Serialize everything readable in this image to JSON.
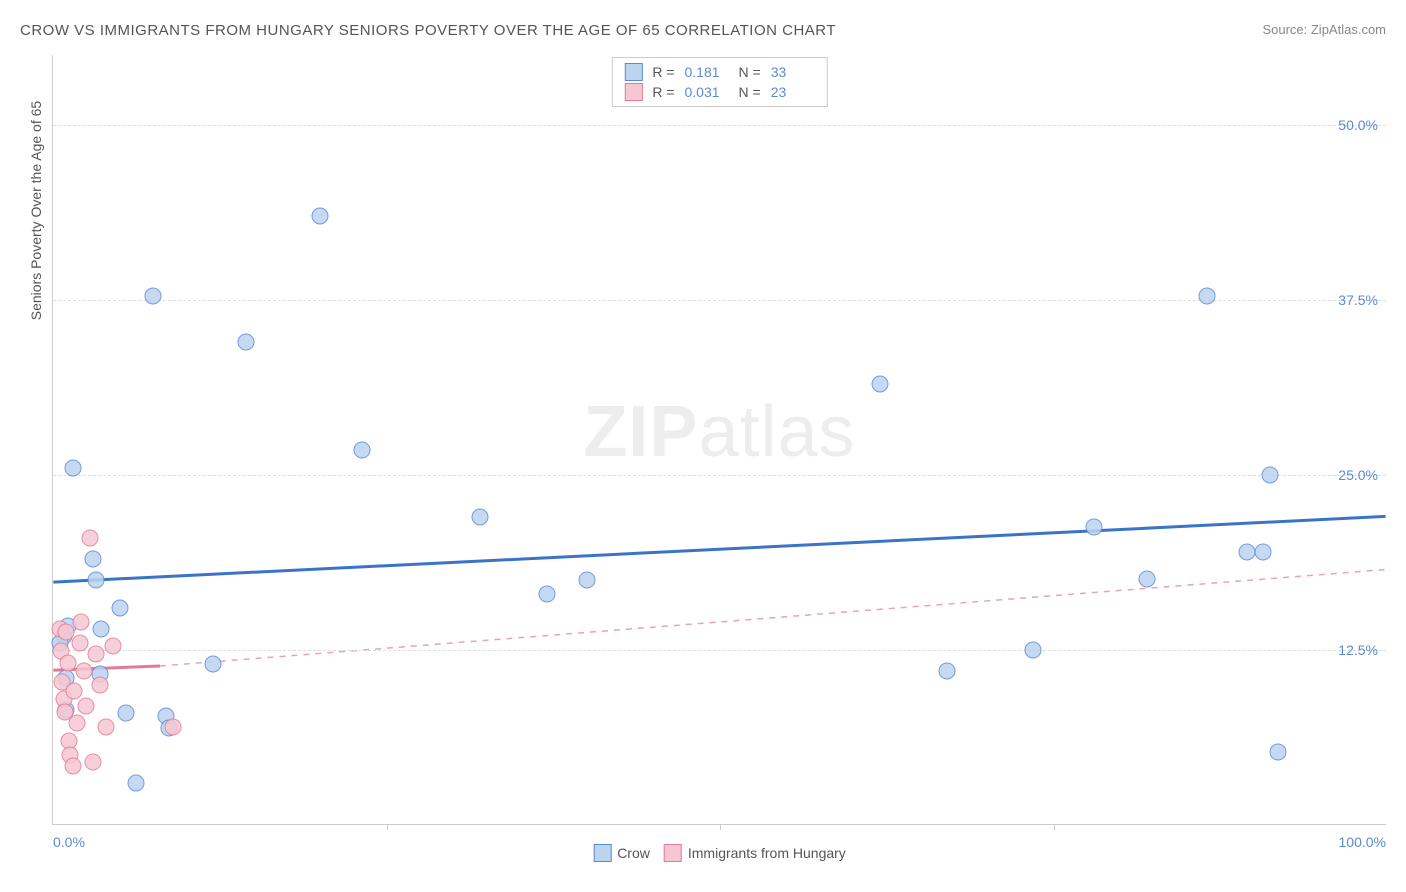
{
  "title": "CROW VS IMMIGRANTS FROM HUNGARY SENIORS POVERTY OVER THE AGE OF 65 CORRELATION CHART",
  "source": "Source: ZipAtlas.com",
  "watermark_html": "<b>ZIP</b>atlas",
  "ylabel": "Seniors Poverty Over the Age of 65",
  "chart": {
    "type": "scatter",
    "background_color": "#ffffff",
    "grid_color": "#dddddd",
    "axis_color": "#cccccc",
    "tick_label_color": "#5b8bd4",
    "axis_label_color": "#555555",
    "xlim": [
      0,
      100
    ],
    "ylim": [
      0,
      55
    ],
    "y_ticks": [
      {
        "v": 12.5,
        "label": "12.5%"
      },
      {
        "v": 25.0,
        "label": "25.0%"
      },
      {
        "v": 37.5,
        "label": "37.5%"
      },
      {
        "v": 50.0,
        "label": "50.0%"
      }
    ],
    "x_ticks_minor": [
      25,
      50,
      75
    ],
    "x_labels": [
      {
        "v": 0,
        "label": "0.0%",
        "align": "left"
      },
      {
        "v": 100,
        "label": "100.0%",
        "align": "right"
      }
    ],
    "marker_radius": 8.5,
    "series": [
      {
        "name": "Crow",
        "fill": "#bcd4f0",
        "stroke": "#5b8bd4",
        "R": "0.181",
        "N": "33",
        "trend": {
          "x1": 0,
          "y1": 17.3,
          "x2": 100,
          "y2": 22.0,
          "stroke": "#3b73c9",
          "width": 3,
          "dash": "none"
        },
        "points": [
          [
            0.8,
            13.5
          ],
          [
            1.0,
            8.2
          ],
          [
            1.0,
            10.5
          ],
          [
            1.1,
            14.2
          ],
          [
            1.5,
            25.5
          ],
          [
            3.0,
            19.0
          ],
          [
            3.2,
            17.5
          ],
          [
            3.5,
            10.8
          ],
          [
            3.6,
            14.0
          ],
          [
            5.0,
            15.5
          ],
          [
            5.5,
            8.0
          ],
          [
            6.2,
            3.0
          ],
          [
            7.5,
            37.8
          ],
          [
            8.5,
            7.8
          ],
          [
            8.7,
            6.9
          ],
          [
            12.0,
            11.5
          ],
          [
            14.5,
            34.5
          ],
          [
            20.0,
            43.5
          ],
          [
            23.2,
            26.8
          ],
          [
            32.0,
            22.0
          ],
          [
            37.0,
            16.5
          ],
          [
            40.0,
            17.5
          ],
          [
            62.0,
            31.5
          ],
          [
            67.0,
            11.0
          ],
          [
            73.5,
            12.5
          ],
          [
            78.0,
            21.3
          ],
          [
            82.0,
            17.6
          ],
          [
            86.5,
            37.8
          ],
          [
            89.5,
            19.5
          ],
          [
            90.7,
            19.5
          ],
          [
            91.2,
            25.0
          ],
          [
            91.8,
            5.2
          ],
          [
            0.5,
            13.0
          ]
        ]
      },
      {
        "name": "Immigrants from Hungary",
        "fill": "#f6c7d2",
        "stroke": "#e37b96",
        "R": "0.031",
        "N": "23",
        "trend_solid": {
          "x1": 0,
          "y1": 11.0,
          "x2": 8,
          "y2": 11.3,
          "stroke": "#e37b96",
          "width": 3
        },
        "trend_dashed": {
          "x1": 8,
          "y1": 11.3,
          "x2": 100,
          "y2": 18.2,
          "stroke": "#e8a3b3",
          "width": 1.5,
          "dash": "6,6"
        },
        "points": [
          [
            0.5,
            14.0
          ],
          [
            0.6,
            12.4
          ],
          [
            0.7,
            10.2
          ],
          [
            0.8,
            9.0
          ],
          [
            0.9,
            8.1
          ],
          [
            1.0,
            13.8
          ],
          [
            1.1,
            11.6
          ],
          [
            1.2,
            6.0
          ],
          [
            1.3,
            5.0
          ],
          [
            1.5,
            4.2
          ],
          [
            1.6,
            9.6
          ],
          [
            1.8,
            7.3
          ],
          [
            2.0,
            13.0
          ],
          [
            2.1,
            14.5
          ],
          [
            2.3,
            11.0
          ],
          [
            2.5,
            8.5
          ],
          [
            2.8,
            20.5
          ],
          [
            3.0,
            4.5
          ],
          [
            3.2,
            12.2
          ],
          [
            3.5,
            10.0
          ],
          [
            4.0,
            7.0
          ],
          [
            4.5,
            12.8
          ],
          [
            9.0,
            7.0
          ]
        ]
      }
    ]
  },
  "legend_bottom": [
    "Crow",
    "Immigrants from Hungary"
  ]
}
